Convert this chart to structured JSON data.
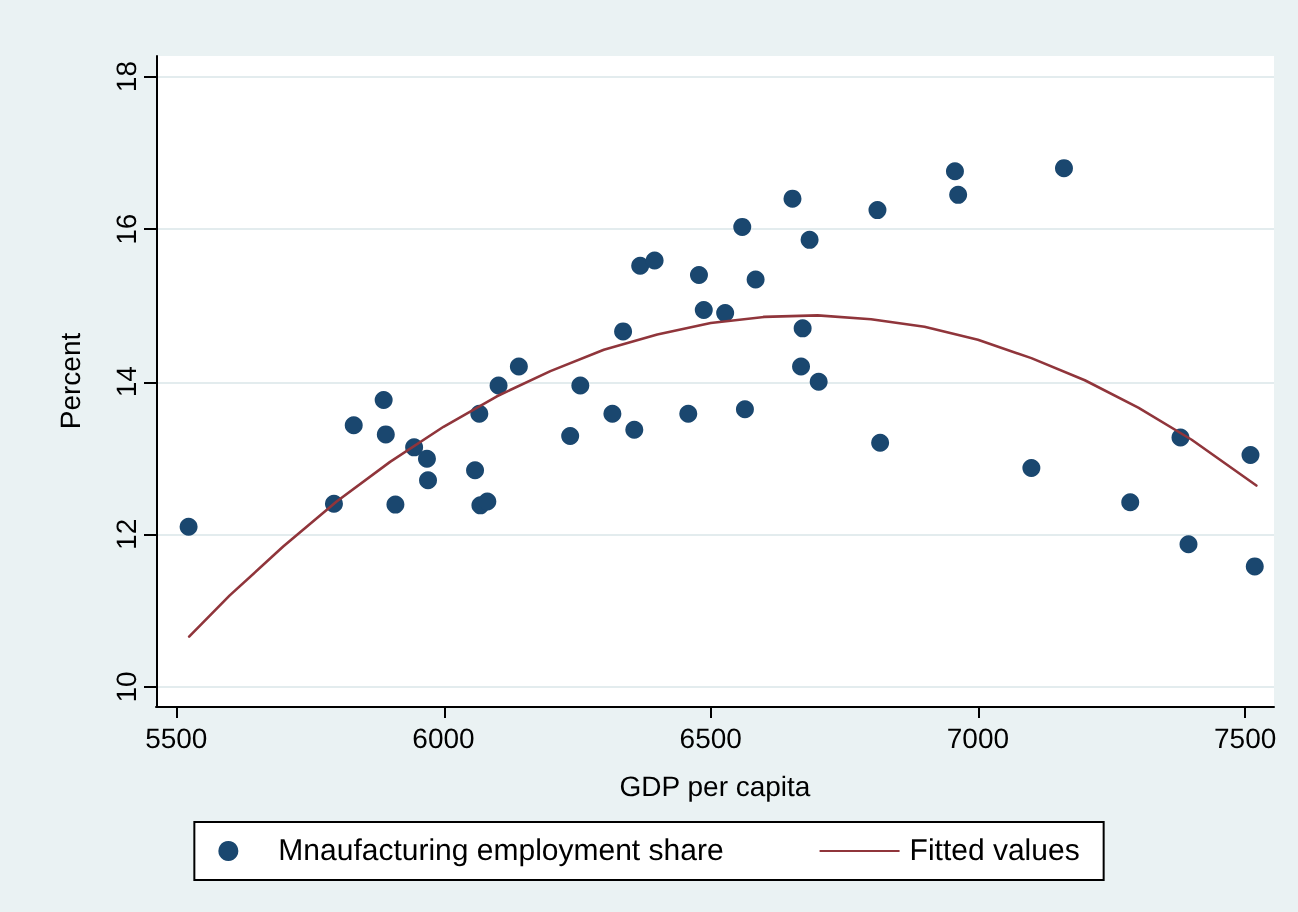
{
  "chart_data": {
    "type": "scatter",
    "xlabel": "GDP per capita",
    "ylabel": "Percent",
    "xlim": [
      5462,
      7554
    ],
    "ylim": [
      9.75,
      18.27
    ],
    "xticks": [
      5500,
      6000,
      6500,
      7000,
      7500
    ],
    "yticks": [
      10,
      12,
      14,
      16,
      18
    ],
    "grid": "y",
    "legend": "bottom",
    "marker": "circle",
    "series": [
      {
        "name": "Mnaufacturing employment share",
        "type": "scatter",
        "color": "#1a476f",
        "x": [
          5523,
          5795,
          5832,
          5888,
          5892,
          5910,
          5945,
          5969,
          5971,
          6059,
          6067,
          6069,
          6082,
          6103,
          6141,
          6237,
          6256,
          6316,
          6336,
          6357,
          6368,
          6395,
          6458,
          6478,
          6487,
          6527,
          6559,
          6564,
          6584,
          6653,
          6685,
          6672,
          6669,
          6702,
          6812,
          6817,
          6957,
          6963,
          7161,
          7100,
          7285,
          7379,
          7394,
          7510,
          7518
        ],
        "values": [
          12.1,
          12.4,
          13.43,
          13.76,
          13.31,
          12.39,
          13.14,
          12.99,
          12.71,
          12.84,
          13.58,
          12.38,
          12.43,
          13.95,
          14.2,
          13.29,
          13.95,
          13.58,
          14.66,
          13.37,
          15.52,
          15.59,
          13.58,
          15.4,
          14.94,
          14.9,
          16.03,
          13.64,
          15.34,
          16.4,
          15.86,
          14.7,
          14.2,
          14.0,
          16.25,
          13.2,
          16.76,
          16.45,
          16.8,
          12.87,
          12.42,
          13.27,
          11.87,
          13.04,
          11.58
        ]
      },
      {
        "name": "Fitted values",
        "type": "line",
        "color": "#90353b",
        "marker": "none",
        "line_style": "solid",
        "x": [
          5524,
          5600,
          5700,
          5800,
          5900,
          6000,
          6100,
          6200,
          6300,
          6400,
          6500,
          6600,
          6700,
          6800,
          6900,
          7000,
          7100,
          7200,
          7300,
          7400,
          7521
        ],
        "values": [
          10.66,
          11.2,
          11.84,
          12.43,
          12.95,
          13.41,
          13.81,
          14.14,
          14.42,
          14.62,
          14.77,
          14.85,
          14.87,
          14.82,
          14.72,
          14.55,
          14.31,
          14.02,
          13.66,
          13.24,
          12.64
        ]
      }
    ]
  }
}
